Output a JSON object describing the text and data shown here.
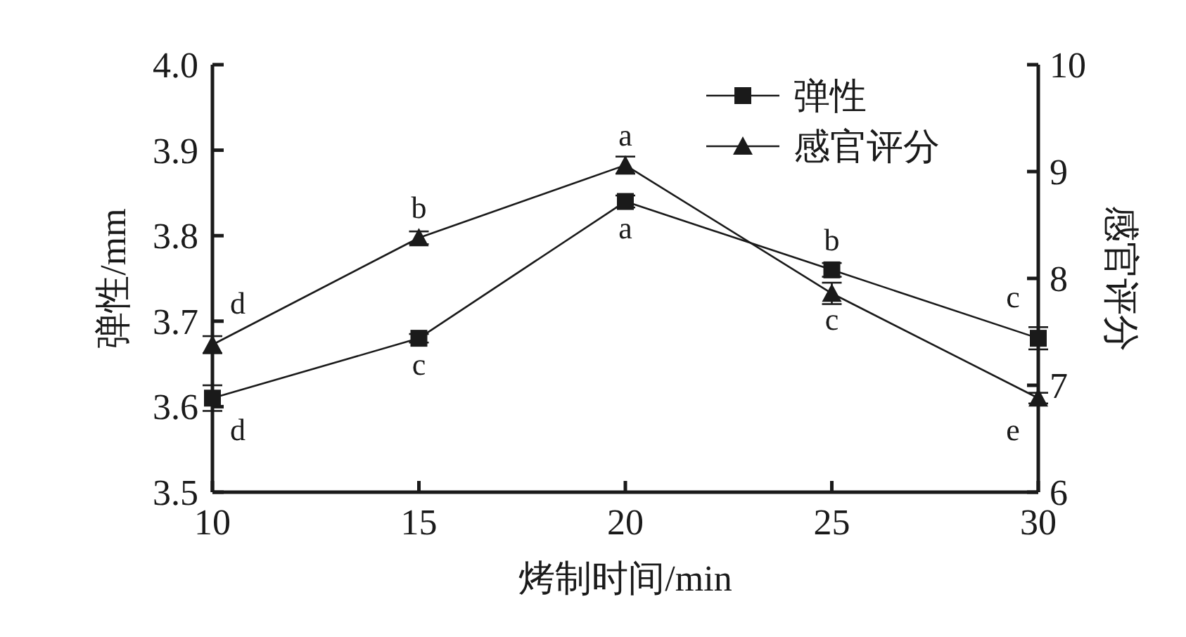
{
  "chart_data": {
    "type": "line",
    "xlabel": "烤制时间/min",
    "ylabel": "弹性/mm",
    "y2label": "感官评分",
    "x": [
      10,
      15,
      20,
      25,
      30
    ],
    "xlim": [
      10,
      30
    ],
    "xticks": [
      10,
      15,
      20,
      25,
      30
    ],
    "ylim": [
      3.5,
      4.0
    ],
    "yticks": [
      3.5,
      3.6,
      3.7,
      3.8,
      3.9,
      {
        "value": 4.0,
        "label": "4.0"
      }
    ],
    "y2lim": [
      6,
      10
    ],
    "y2ticks": [
      6,
      7,
      8,
      9,
      10
    ],
    "legend": "top right",
    "grid": false,
    "series": [
      {
        "name": "弹性",
        "color": "#1a1a1a",
        "marker": "square",
        "values": [
          3.61,
          3.68,
          3.84,
          3.76,
          3.68
        ],
        "errors": [
          0.015,
          0.005,
          0.007,
          0.008,
          0.013
        ],
        "value_labels": [
          "d",
          "c",
          "a",
          "b",
          "c"
        ]
      },
      {
        "name": "感官评分",
        "color": "#1a1a1a",
        "marker": "triangle",
        "axis": "y2",
        "values": [
          7.38,
          8.38,
          9.06,
          7.86,
          6.88
        ],
        "errors": [
          0.08,
          0.06,
          0.08,
          0.1,
          0.05
        ],
        "value_labels": [
          "d",
          "b",
          "a",
          "c",
          "e"
        ]
      }
    ]
  }
}
